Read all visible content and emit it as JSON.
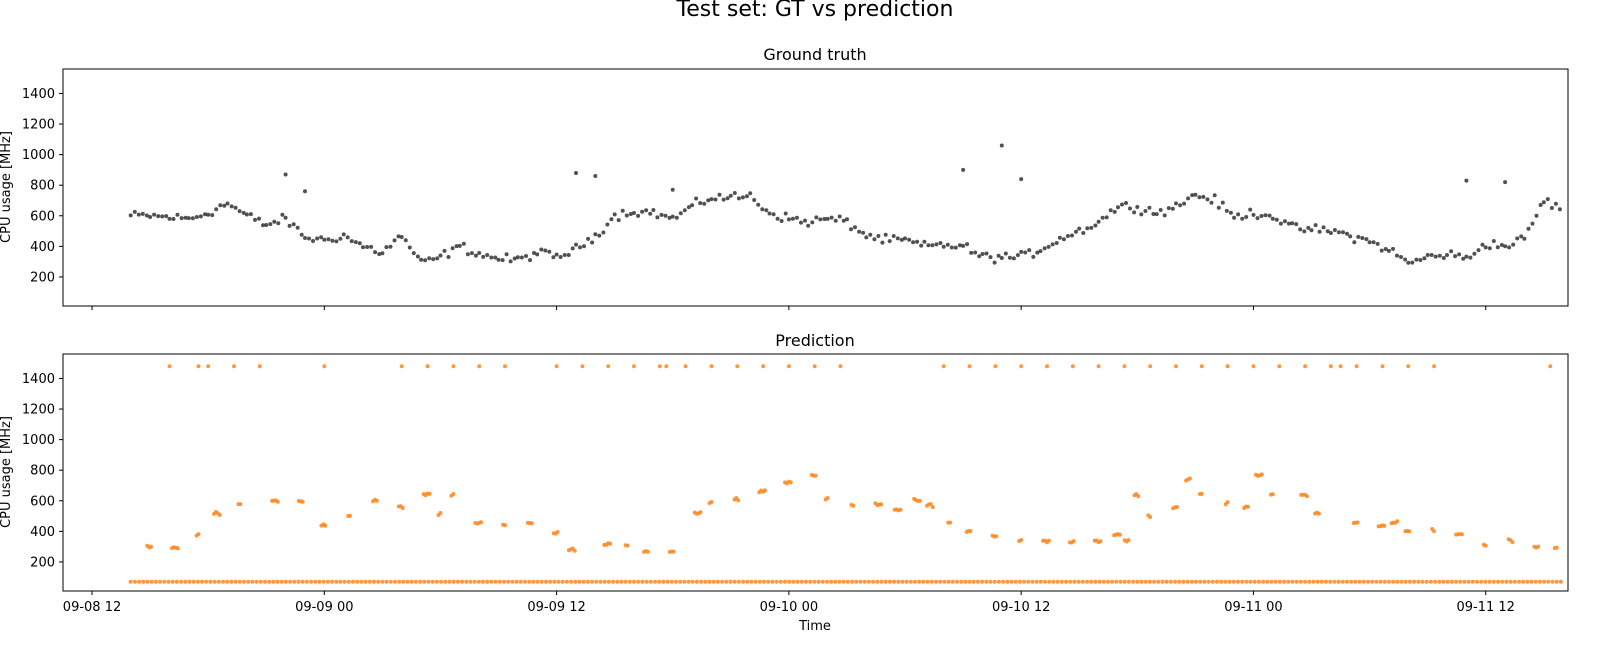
{
  "figure": {
    "suptitle": "Test set: GT vs prediction",
    "xlabel": "Time"
  },
  "colors": {
    "ground_truth": "#333333",
    "prediction": "#ff8c28"
  },
  "chart_data": [
    {
      "type": "scatter",
      "title": "Ground truth",
      "xlabel": "",
      "ylabel": "CPU usage [MHz]",
      "xlim": [
        "2021-09-08T10:30",
        "2021-09-11T16:15"
      ],
      "ylim": [
        10,
        1560
      ],
      "yticks": [
        200,
        400,
        600,
        800,
        1000,
        1200,
        1400
      ],
      "xticks": [
        "2021-09-08T12:00",
        "2021-09-09T00:00",
        "2021-09-09T12:00",
        "2021-09-10T00:00",
        "2021-09-10T12:00",
        "2021-09-11T00:00",
        "2021-09-11T12:00"
      ],
      "xtick_labels_shown": false,
      "grid": false,
      "series": [
        {
          "values_by_hour": [
            [
              "2021-09-08T14:00",
              600
            ],
            [
              "2021-09-08T15:00",
              600
            ],
            [
              "2021-09-08T16:00",
              590
            ],
            [
              "2021-09-08T17:00",
              580
            ],
            [
              "2021-09-08T18:00",
              620
            ],
            [
              "2021-09-08T19:00",
              680
            ],
            [
              "2021-09-08T20:00",
              600
            ],
            [
              "2021-09-08T21:00",
              540
            ],
            [
              "2021-09-08T22:00",
              580
            ],
            [
              "2021-09-08T23:00",
              460
            ],
            [
              "2021-09-09T00:00",
              440
            ],
            [
              "2021-09-09T01:00",
              470
            ],
            [
              "2021-09-09T02:00",
              400
            ],
            [
              "2021-09-09T03:00",
              360
            ],
            [
              "2021-09-09T04:00",
              470
            ],
            [
              "2021-09-09T05:00",
              290
            ],
            [
              "2021-09-09T06:00",
              330
            ],
            [
              "2021-09-09T07:00",
              400
            ],
            [
              "2021-09-09T08:00",
              350
            ],
            [
              "2021-09-09T09:00",
              320
            ],
            [
              "2021-09-09T10:00",
              310
            ],
            [
              "2021-09-09T11:00",
              360
            ],
            [
              "2021-09-09T12:00",
              330
            ],
            [
              "2021-09-09T13:00",
              380
            ],
            [
              "2021-09-09T14:00",
              470
            ],
            [
              "2021-09-09T15:00",
              600
            ],
            [
              "2021-09-09T16:00",
              630
            ],
            [
              "2021-09-09T17:00",
              620
            ],
            [
              "2021-09-09T18:00",
              580
            ],
            [
              "2021-09-09T19:00",
              660
            ],
            [
              "2021-09-09T20:00",
              720
            ],
            [
              "2021-09-09T21:00",
              720
            ],
            [
              "2021-09-09T22:00",
              730
            ],
            [
              "2021-09-09T23:00",
              620
            ],
            [
              "2021-09-10T00:00",
              580
            ],
            [
              "2021-09-10T01:00",
              560
            ],
            [
              "2021-09-10T02:00",
              580
            ],
            [
              "2021-09-10T03:00",
              560
            ],
            [
              "2021-09-10T04:00",
              470
            ],
            [
              "2021-09-10T05:00",
              440
            ],
            [
              "2021-09-10T06:00",
              440
            ],
            [
              "2021-09-10T07:00",
              400
            ],
            [
              "2021-09-10T08:00",
              410
            ],
            [
              "2021-09-10T09:00",
              400
            ],
            [
              "2021-09-10T10:00",
              330
            ],
            [
              "2021-09-10T11:00",
              330
            ],
            [
              "2021-09-10T12:00",
              330
            ],
            [
              "2021-09-10T13:00",
              380
            ],
            [
              "2021-09-10T14:00",
              450
            ],
            [
              "2021-09-10T15:00",
              500
            ],
            [
              "2021-09-10T16:00",
              560
            ],
            [
              "2021-09-10T17:00",
              660
            ],
            [
              "2021-09-10T18:00",
              660
            ],
            [
              "2021-09-10T19:00",
              620
            ],
            [
              "2021-09-10T20:00",
              660
            ],
            [
              "2021-09-10T21:00",
              740
            ],
            [
              "2021-09-10T22:00",
              700
            ],
            [
              "2021-09-10T23:00",
              590
            ],
            [
              "2021-09-11T00:00",
              620
            ],
            [
              "2021-09-11T01:00",
              600
            ],
            [
              "2021-09-11T02:00",
              520
            ],
            [
              "2021-09-11T03:00",
              510
            ],
            [
              "2021-09-11T04:00",
              500
            ],
            [
              "2021-09-11T05:00",
              470
            ],
            [
              "2021-09-11T06:00",
              430
            ],
            [
              "2021-09-11T07:00",
              380
            ],
            [
              "2021-09-11T08:00",
              290
            ],
            [
              "2021-09-11T09:00",
              330
            ],
            [
              "2021-09-11T10:00",
              350
            ],
            [
              "2021-09-11T11:00",
              320
            ],
            [
              "2021-09-11T12:00",
              420
            ],
            [
              "2021-09-11T13:00",
              400
            ],
            [
              "2021-09-11T14:00",
              450
            ],
            [
              "2021-09-11T15:00",
              700
            ],
            [
              "2021-09-11T16:00",
              640
            ]
          ],
          "outliers": [
            [
              "2021-09-08T22:00",
              870
            ],
            [
              "2021-09-08T23:00",
              760
            ],
            [
              "2021-09-09T13:00",
              880
            ],
            [
              "2021-09-09T14:00",
              860
            ],
            [
              "2021-09-09T18:00",
              770
            ],
            [
              "2021-09-10T09:00",
              900
            ],
            [
              "2021-09-10T11:00",
              1060
            ],
            [
              "2021-09-10T12:00",
              840
            ],
            [
              "2021-09-11T11:00",
              830
            ],
            [
              "2021-09-11T13:00",
              820
            ]
          ]
        }
      ]
    },
    {
      "type": "scatter",
      "title": "Prediction",
      "xlabel": "Time",
      "ylabel": "CPU usage [MHz]",
      "xlim": [
        "2021-09-08T10:30",
        "2021-09-11T16:15"
      ],
      "ylim": [
        10,
        1560
      ],
      "yticks": [
        200,
        400,
        600,
        800,
        1000,
        1200,
        1400
      ],
      "xticks": [
        "2021-09-08T12:00",
        "2021-09-09T00:00",
        "2021-09-09T12:00",
        "2021-09-10T00:00",
        "2021-09-10T12:00",
        "2021-09-11T00:00",
        "2021-09-11T12:00"
      ],
      "xtick_labels": [
        "09-08 12",
        "09-09 00",
        "09-09 12",
        "09-10 00",
        "09-10 12",
        "09-11 00",
        "09-11 12"
      ],
      "grid": false,
      "series": [
        {
          "low_level": 70,
          "low_range": [
            "2021-09-08T14:00",
            "2021-09-11T16:00"
          ],
          "high_level": 1480,
          "high_times": [
            "2021-09-08T16:00",
            "2021-09-08T17:30",
            "2021-09-08T18:00",
            "2021-09-08T19:20",
            "2021-09-08T20:40",
            "2021-09-09T00:00",
            "2021-09-09T04:00",
            "2021-09-09T05:20",
            "2021-09-09T06:40",
            "2021-09-09T08:00",
            "2021-09-09T09:20",
            "2021-09-09T12:00",
            "2021-09-09T13:20",
            "2021-09-09T14:40",
            "2021-09-09T16:00",
            "2021-09-09T17:20",
            "2021-09-09T17:40",
            "2021-09-09T18:40",
            "2021-09-09T20:00",
            "2021-09-09T21:20",
            "2021-09-09T22:40",
            "2021-09-10T00:00",
            "2021-09-10T01:20",
            "2021-09-10T02:40",
            "2021-09-10T08:00",
            "2021-09-10T09:20",
            "2021-09-10T10:40",
            "2021-09-10T12:00",
            "2021-09-10T13:20",
            "2021-09-10T14:40",
            "2021-09-10T16:00",
            "2021-09-10T17:20",
            "2021-09-10T18:40",
            "2021-09-10T20:00",
            "2021-09-10T21:20",
            "2021-09-10T22:40",
            "2021-09-11T00:00",
            "2021-09-11T01:20",
            "2021-09-11T02:40",
            "2021-09-11T04:00",
            "2021-09-11T04:30",
            "2021-09-11T05:20",
            "2021-09-11T06:40",
            "2021-09-11T08:00",
            "2021-09-11T09:20",
            "2021-09-11T15:20"
          ],
          "clusters": [
            [
              "2021-09-08T15:00",
              300
            ],
            [
              "2021-09-08T16:20",
              290
            ],
            [
              "2021-09-08T17:30",
              380
            ],
            [
              "2021-09-08T18:30",
              520
            ],
            [
              "2021-09-08T19:40",
              580
            ],
            [
              "2021-09-08T21:30",
              600
            ],
            [
              "2021-09-08T22:50",
              600
            ],
            [
              "2021-09-09T00:00",
              440
            ],
            [
              "2021-09-09T01:20",
              500
            ],
            [
              "2021-09-09T02:40",
              600
            ],
            [
              "2021-09-09T04:00",
              560
            ],
            [
              "2021-09-09T05:20",
              640
            ],
            [
              "2021-09-09T06:00",
              520
            ],
            [
              "2021-09-09T06:40",
              640
            ],
            [
              "2021-09-09T08:00",
              460
            ],
            [
              "2021-09-09T09:20",
              440
            ],
            [
              "2021-09-09T10:40",
              460
            ],
            [
              "2021-09-09T12:00",
              390
            ],
            [
              "2021-09-09T12:50",
              280
            ],
            [
              "2021-09-09T14:40",
              310
            ],
            [
              "2021-09-09T15:40",
              310
            ],
            [
              "2021-09-09T16:40",
              270
            ],
            [
              "2021-09-09T18:00",
              270
            ],
            [
              "2021-09-09T19:20",
              520
            ],
            [
              "2021-09-09T20:00",
              590
            ],
            [
              "2021-09-09T21:20",
              610
            ],
            [
              "2021-09-09T22:40",
              660
            ],
            [
              "2021-09-10T00:00",
              720
            ],
            [
              "2021-09-10T01:20",
              760
            ],
            [
              "2021-09-10T02:00",
              610
            ],
            [
              "2021-09-10T03:20",
              570
            ],
            [
              "2021-09-10T04:40",
              580
            ],
            [
              "2021-09-10T05:40",
              540
            ],
            [
              "2021-09-10T06:40",
              600
            ],
            [
              "2021-09-10T07:20",
              570
            ],
            [
              "2021-09-10T08:20",
              460
            ],
            [
              "2021-09-10T09:20",
              400
            ],
            [
              "2021-09-10T10:40",
              370
            ],
            [
              "2021-09-10T12:00",
              340
            ],
            [
              "2021-09-10T13:20",
              340
            ],
            [
              "2021-09-10T14:40",
              330
            ],
            [
              "2021-09-10T16:00",
              340
            ],
            [
              "2021-09-10T17:00",
              380
            ],
            [
              "2021-09-10T17:30",
              340
            ],
            [
              "2021-09-10T18:00",
              640
            ],
            [
              "2021-09-10T18:40",
              500
            ],
            [
              "2021-09-10T20:00",
              550
            ],
            [
              "2021-09-10T20:40",
              740
            ],
            [
              "2021-09-10T21:20",
              640
            ],
            [
              "2021-09-10T22:40",
              580
            ],
            [
              "2021-09-10T23:40",
              560
            ],
            [
              "2021-09-11T00:20",
              770
            ],
            [
              "2021-09-11T01:00",
              640
            ],
            [
              "2021-09-11T02:40",
              640
            ],
            [
              "2021-09-11T03:20",
              520
            ],
            [
              "2021-09-11T05:20",
              460
            ],
            [
              "2021-09-11T06:40",
              430
            ],
            [
              "2021-09-11T07:20",
              460
            ],
            [
              "2021-09-11T08:00",
              400
            ],
            [
              "2021-09-11T09:20",
              410
            ],
            [
              "2021-09-11T10:40",
              380
            ],
            [
              "2021-09-11T12:00",
              310
            ],
            [
              "2021-09-11T13:20",
              340
            ],
            [
              "2021-09-11T14:40",
              300
            ],
            [
              "2021-09-11T15:40",
              290
            ]
          ]
        }
      ]
    }
  ]
}
